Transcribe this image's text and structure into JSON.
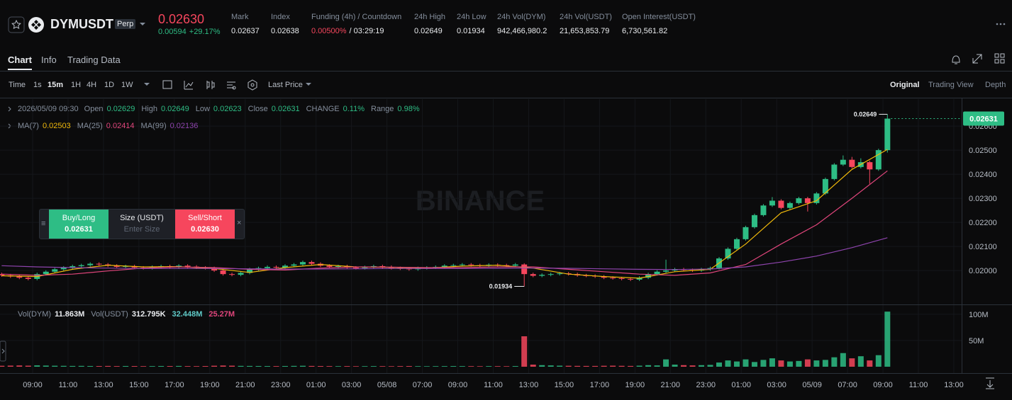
{
  "header": {
    "symbol": "DYMUSDT",
    "contract": "Perp",
    "price": "0.02630",
    "change": "0.00594",
    "change_pct": "+29.17%",
    "stats": [
      {
        "label": "Mark",
        "value": "0.02637"
      },
      {
        "label": "Index",
        "value": "0.02638"
      },
      {
        "label": "Funding (4h) / Countdown",
        "value": "0.00500%",
        "value_color": "#f6465d",
        "extra": "/ 03:29:19"
      },
      {
        "label": "24h High",
        "value": "0.02649"
      },
      {
        "label": "24h Low",
        "value": "0.01934"
      },
      {
        "label": "24h Vol(DYM)",
        "value": "942,466,980.2"
      },
      {
        "label": "24h Vol(USDT)",
        "value": "21,653,853.79"
      },
      {
        "label": "Open Interest(USDT)",
        "value": "6,730,561.82"
      }
    ]
  },
  "tabs": [
    "Chart",
    "Info",
    "Trading Data"
  ],
  "toolbar": {
    "intervals": [
      "Time",
      "1s",
      "15m",
      "1H",
      "4H",
      "1D",
      "1W"
    ],
    "price_source": "Last Price",
    "views": [
      "Original",
      "Trading View",
      "Depth"
    ]
  },
  "ohlc_bar": {
    "date": "2026/05/09 09:30",
    "fields": [
      {
        "label": "Open",
        "value": "0.02629"
      },
      {
        "label": "High",
        "value": "0.02649"
      },
      {
        "label": "Low",
        "value": "0.02623"
      },
      {
        "label": "Close",
        "value": "0.02631"
      },
      {
        "label": "CHANGE",
        "value": "0.11%"
      },
      {
        "label": "Range",
        "value": "0.98%"
      }
    ]
  },
  "order_panel": {
    "buy": {
      "label": "Buy/Long",
      "price": "0.02631"
    },
    "size": {
      "label": "Size (USDT)",
      "placeholder": "Enter Size"
    },
    "sell": {
      "label": "Sell/Short",
      "price": "0.02630"
    }
  },
  "watermark": "BINANCE",
  "volume_legend": [
    {
      "label": "Vol(DYM)",
      "value": "11.863M",
      "color": "#eaecef"
    },
    {
      "label": "Vol(USDT)",
      "value": "312.795K",
      "color": "#eaecef"
    },
    {
      "value": "32.448M",
      "color": "#5fc9c6"
    },
    {
      "value": "25.27M",
      "color": "#e0457b"
    }
  ],
  "chart_data": {
    "type": "candlestick",
    "up_color": "#2ebd85",
    "down_color": "#f6465d",
    "grid": true,
    "ylim": [
      0.01859,
      0.02712
    ],
    "yticks": [
      {
        "value": 0.02,
        "label": "0.02000"
      },
      {
        "value": 0.021,
        "label": "0.02100"
      },
      {
        "value": 0.022,
        "label": "0.02200"
      },
      {
        "value": 0.023,
        "label": "0.02300"
      },
      {
        "value": 0.024,
        "label": "0.02400"
      },
      {
        "value": 0.025,
        "label": "0.02500"
      },
      {
        "value": 0.026,
        "label": "0.02600"
      }
    ],
    "xtick_labels": [
      "09:00",
      "11:00",
      "13:00",
      "15:00",
      "17:00",
      "19:00",
      "21:00",
      "23:00",
      "01:00",
      "03:00",
      "05/08",
      "07:00",
      "09:00",
      "11:00",
      "13:00",
      "15:00",
      "17:00",
      "19:00",
      "21:00",
      "23:00",
      "01:00",
      "03:00",
      "05/09",
      "07:00",
      "09:00",
      "11:00",
      "13:00"
    ],
    "candles": [
      [
        0.01985,
        0.01991,
        0.01974,
        0.0198
      ],
      [
        0.0198,
        0.01986,
        0.01969,
        0.01975
      ],
      [
        0.01975,
        0.01981,
        0.01964,
        0.0197
      ],
      [
        0.0197,
        0.01976,
        0.01959,
        0.01965
      ],
      [
        0.01965,
        0.01991,
        0.01959,
        0.01985
      ],
      [
        0.01985,
        0.02001,
        0.01979,
        0.01995
      ],
      [
        0.01995,
        0.02011,
        0.01989,
        0.02005
      ],
      [
        0.02005,
        0.02018,
        0.01999,
        0.02012
      ],
      [
        0.02012,
        0.02024,
        0.02006,
        0.02018
      ],
      [
        0.02018,
        0.02028,
        0.02012,
        0.02022
      ],
      [
        0.02022,
        0.02034,
        0.02016,
        0.02028
      ],
      [
        0.02028,
        0.02034,
        0.02019,
        0.02025
      ],
      [
        0.02025,
        0.02031,
        0.02014,
        0.0202
      ],
      [
        0.0202,
        0.02026,
        0.02009,
        0.02015
      ],
      [
        0.02015,
        0.02024,
        0.02009,
        0.02018
      ],
      [
        0.02018,
        0.02024,
        0.02006,
        0.02012
      ],
      [
        0.02012,
        0.02018,
        0.02004,
        0.0201
      ],
      [
        0.0201,
        0.02021,
        0.02004,
        0.02015
      ],
      [
        0.02015,
        0.02024,
        0.02009,
        0.02018
      ],
      [
        0.02018,
        0.02024,
        0.02008,
        0.02014
      ],
      [
        0.02014,
        0.02026,
        0.02008,
        0.0202
      ],
      [
        0.0202,
        0.02026,
        0.0201,
        0.02016
      ],
      [
        0.02016,
        0.02022,
        0.02006,
        0.02012
      ],
      [
        0.02012,
        0.02018,
        0.02004,
        0.0201
      ],
      [
        0.0201,
        0.02016,
        0.01994,
        0.02
      ],
      [
        0.02,
        0.02006,
        0.01979,
        0.01985
      ],
      [
        0.01985,
        0.01991,
        0.01976,
        0.01982
      ],
      [
        0.01982,
        0.01996,
        0.01976,
        0.0199
      ],
      [
        0.0199,
        0.02011,
        0.01984,
        0.02005
      ],
      [
        0.02005,
        0.02016,
        0.01999,
        0.0201
      ],
      [
        0.0201,
        0.02021,
        0.02004,
        0.02015
      ],
      [
        0.02015,
        0.02021,
        0.02006,
        0.02012
      ],
      [
        0.02012,
        0.02026,
        0.02006,
        0.0202
      ],
      [
        0.0202,
        0.02031,
        0.02014,
        0.02025
      ],
      [
        0.02025,
        0.02041,
        0.02019,
        0.02035
      ],
      [
        0.02035,
        0.02041,
        0.02022,
        0.02028
      ],
      [
        0.02028,
        0.02034,
        0.02014,
        0.0202
      ],
      [
        0.0202,
        0.02026,
        0.02009,
        0.02015
      ],
      [
        0.02015,
        0.02024,
        0.02009,
        0.02018
      ],
      [
        0.02018,
        0.02024,
        0.02006,
        0.02012
      ],
      [
        0.02012,
        0.02018,
        0.02004,
        0.0201
      ],
      [
        0.0201,
        0.0202,
        0.02004,
        0.02014
      ],
      [
        0.02014,
        0.02024,
        0.02008,
        0.02018
      ],
      [
        0.02018,
        0.02024,
        0.02009,
        0.02015
      ],
      [
        0.02015,
        0.02021,
        0.02004,
        0.0201
      ],
      [
        0.0201,
        0.02016,
        0.02002,
        0.02008
      ],
      [
        0.02008,
        0.02014,
        0.01999,
        0.02005
      ],
      [
        0.02005,
        0.02016,
        0.01999,
        0.0201
      ],
      [
        0.0201,
        0.02018,
        0.02004,
        0.02012
      ],
      [
        0.02012,
        0.02021,
        0.02006,
        0.02015
      ],
      [
        0.02015,
        0.02026,
        0.02009,
        0.0202
      ],
      [
        0.0202,
        0.02028,
        0.02014,
        0.02022
      ],
      [
        0.02022,
        0.02031,
        0.02016,
        0.02025
      ],
      [
        0.02025,
        0.02031,
        0.02016,
        0.02022
      ],
      [
        0.02022,
        0.02028,
        0.02014,
        0.0202
      ],
      [
        0.0202,
        0.0203,
        0.02014,
        0.02024
      ],
      [
        0.02024,
        0.0203,
        0.02016,
        0.02022
      ],
      [
        0.02022,
        0.02028,
        0.02014,
        0.0202
      ],
      [
        0.0202,
        0.02031,
        0.02014,
        0.02025
      ],
      [
        0.02025,
        0.0203,
        0.01934,
        0.01985
      ],
      [
        0.01985,
        0.01991,
        0.01972,
        0.01978
      ],
      [
        0.01978,
        0.01988,
        0.01972,
        0.01982
      ],
      [
        0.01982,
        0.01991,
        0.01976,
        0.01985
      ],
      [
        0.01985,
        0.01994,
        0.01979,
        0.01988
      ],
      [
        0.01988,
        0.01994,
        0.01979,
        0.01985
      ],
      [
        0.01985,
        0.01991,
        0.01974,
        0.0198
      ],
      [
        0.0198,
        0.01986,
        0.01972,
        0.01978
      ],
      [
        0.01978,
        0.01984,
        0.01969,
        0.01975
      ],
      [
        0.01975,
        0.01981,
        0.01964,
        0.0197
      ],
      [
        0.0197,
        0.01976,
        0.01962,
        0.01968
      ],
      [
        0.01968,
        0.01974,
        0.01959,
        0.01965
      ],
      [
        0.01965,
        0.01971,
        0.01956,
        0.01962
      ],
      [
        0.01962,
        0.01976,
        0.01956,
        0.0197
      ],
      [
        0.0197,
        0.01991,
        0.01964,
        0.01985
      ],
      [
        0.01985,
        0.02001,
        0.01979,
        0.01995
      ],
      [
        0.01995,
        0.02045,
        0.01989,
        0.02
      ],
      [
        0.02,
        0.02011,
        0.01994,
        0.02005
      ],
      [
        0.02005,
        0.02011,
        0.01996,
        0.02002
      ],
      [
        0.02002,
        0.02008,
        0.01994,
        0.02
      ],
      [
        0.02,
        0.02011,
        0.01994,
        0.02005
      ],
      [
        0.02005,
        0.02016,
        0.01999,
        0.0201
      ],
      [
        0.0201,
        0.02056,
        0.02004,
        0.0205
      ],
      [
        0.0205,
        0.02096,
        0.02044,
        0.0209
      ],
      [
        0.0209,
        0.02136,
        0.02084,
        0.0213
      ],
      [
        0.0213,
        0.02186,
        0.02124,
        0.0218
      ],
      [
        0.0218,
        0.02236,
        0.02174,
        0.0223
      ],
      [
        0.0223,
        0.02276,
        0.02224,
        0.0227
      ],
      [
        0.0227,
        0.02305,
        0.02264,
        0.0229
      ],
      [
        0.0229,
        0.02296,
        0.02254,
        0.0226
      ],
      [
        0.0226,
        0.02286,
        0.02254,
        0.0228
      ],
      [
        0.0228,
        0.02306,
        0.02274,
        0.023
      ],
      [
        0.023,
        0.02306,
        0.02245,
        0.0228
      ],
      [
        0.0228,
        0.02326,
        0.02274,
        0.0232
      ],
      [
        0.0232,
        0.02386,
        0.02314,
        0.0238
      ],
      [
        0.0238,
        0.02446,
        0.02374,
        0.0244
      ],
      [
        0.0244,
        0.02478,
        0.02434,
        0.0246
      ],
      [
        0.0246,
        0.02472,
        0.02424,
        0.0243
      ],
      [
        0.0243,
        0.02466,
        0.02424,
        0.0245
      ],
      [
        0.0245,
        0.02456,
        0.0236,
        0.0242
      ],
      [
        0.0242,
        0.02506,
        0.02414,
        0.025
      ],
      [
        0.025,
        0.02649,
        0.0249,
        0.02631
      ]
    ],
    "series": [
      {
        "name": "MA(7)",
        "color": "#f0b90b",
        "x": [
          0,
          4,
          8,
          12,
          16,
          20,
          24,
          28,
          32,
          36,
          40,
          44,
          48,
          52,
          56,
          60,
          64,
          68,
          72,
          76,
          80,
          84,
          88,
          92,
          96,
          100
        ],
        "values": [
          0.01978,
          0.01975,
          0.02005,
          0.02022,
          0.02015,
          0.02016,
          0.02008,
          0.01992,
          0.02012,
          0.02025,
          0.02015,
          0.02013,
          0.0201,
          0.02018,
          0.02022,
          0.0201,
          0.01985,
          0.01975,
          0.01968,
          0.01995,
          0.02005,
          0.0211,
          0.0224,
          0.0229,
          0.0242,
          0.02503
        ]
      },
      {
        "name": "MA(25)",
        "color": "#e0457b",
        "x": [
          0,
          4,
          8,
          12,
          16,
          20,
          24,
          28,
          32,
          36,
          40,
          44,
          48,
          52,
          56,
          60,
          64,
          68,
          72,
          76,
          80,
          84,
          88,
          92,
          96,
          100
        ],
        "values": [
          0.01985,
          0.0198,
          0.01985,
          0.01998,
          0.0201,
          0.02015,
          0.02012,
          0.02005,
          0.02002,
          0.0201,
          0.02015,
          0.02014,
          0.02012,
          0.02012,
          0.02015,
          0.02015,
          0.02005,
          0.01995,
          0.01985,
          0.0198,
          0.0199,
          0.02025,
          0.0211,
          0.0219,
          0.023,
          0.02414
        ]
      },
      {
        "name": "MA(99)",
        "color": "#8e44ad",
        "x": [
          0,
          4,
          8,
          12,
          16,
          20,
          24,
          28,
          32,
          36,
          40,
          44,
          48,
          52,
          56,
          60,
          64,
          68,
          72,
          76,
          80,
          84,
          88,
          92,
          96,
          100
        ],
        "values": [
          0.0202,
          0.02015,
          0.02012,
          0.0201,
          0.02008,
          0.02008,
          0.02008,
          0.02007,
          0.02006,
          0.02006,
          0.02007,
          0.02008,
          0.02008,
          0.02008,
          0.02009,
          0.0201,
          0.02009,
          0.02007,
          0.02005,
          0.02004,
          0.02006,
          0.02015,
          0.02035,
          0.0206,
          0.02095,
          0.02136
        ]
      }
    ],
    "volume": {
      "ylim": [
        0,
        116000000
      ],
      "yticks": [
        {
          "value": 50000000,
          "label": "50M"
        },
        {
          "value": 100000000,
          "label": "100M"
        }
      ],
      "values": [
        1800000.0,
        2100000.0,
        2400000.0,
        2000000.0,
        2600000.0,
        2200000.0,
        1900000.0,
        1700000.0,
        1500000.0,
        1600000.0,
        1400000.0,
        1300000.0,
        1500000.0,
        1200000.0,
        1400000.0,
        1300000.0,
        1100000.0,
        1200000.0,
        1400000.0,
        1300000.0,
        1500000.0,
        1200000.0,
        1100000.0,
        1300000.0,
        1900000.0,
        2300000.0,
        2000000.0,
        1600000.0,
        1500000.0,
        1400000.0,
        1300000.0,
        1200000.0,
        1400000.0,
        1600000.0,
        1800000.0,
        1500000.0,
        1300000.0,
        1200000.0,
        1100000.0,
        1200000.0,
        1000000.0,
        1100000.0,
        1200000.0,
        1100000.0,
        1000000.0,
        1200000.0,
        1300000.0,
        1100000.0,
        1000000.0,
        1100000.0,
        1200000.0,
        1300000.0,
        1200000.0,
        1100000.0,
        1000000.0,
        1200000.0,
        1100000.0,
        1000000.0,
        1300000.0,
        58000000.0,
        4000000.0,
        3000000.0,
        2500000.0,
        2000000.0,
        1800000.0,
        1600000.0,
        1500000.0,
        1500000.0,
        1800000.0,
        2000000.0,
        1700000.0,
        1500000.0,
        2000000.0,
        3000000.0,
        2500000.0,
        14000000.0,
        4000000.0,
        3000000.0,
        2500000.0,
        3000000.0,
        3500000.0,
        8000000.0,
        12000000.0,
        10000000.0,
        14000000.0,
        9000000.0,
        13000000.0,
        16000000.0,
        12000000.0,
        10000000.0,
        11000000.0,
        14000000.0,
        12000000.0,
        13000000.0,
        18000000.0,
        26000000.0,
        16000000.0,
        20000000.0,
        12000000.0,
        22000000.0,
        105000000.0
      ]
    }
  }
}
